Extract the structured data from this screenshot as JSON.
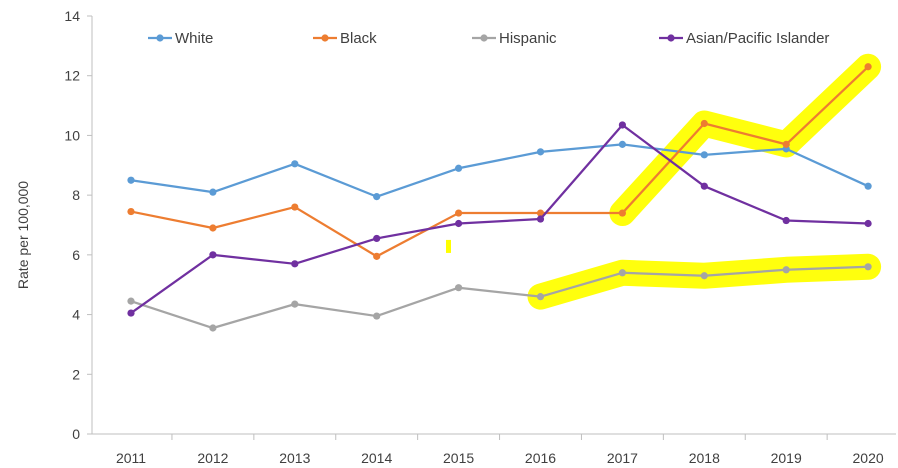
{
  "colors": {
    "White": "#5B9BD5",
    "Black": "#ED7D31",
    "Hispanic": "#A5A5A5",
    "Asian/Pacific Islander": "#7030A0",
    "highlight": "#FFFF00",
    "axis": "#BFBFBF",
    "text": "#404040"
  },
  "chart_data": {
    "type": "line",
    "title": "",
    "xlabel": "",
    "ylabel": "Rate per 100,000",
    "x": [
      "2011",
      "2012",
      "2013",
      "2014",
      "2015",
      "2016",
      "2017",
      "2018",
      "2019",
      "2020"
    ],
    "ylim": [
      0,
      14
    ],
    "yticks": [
      "0",
      "2",
      "4",
      "6",
      "8",
      "10",
      "12",
      "14"
    ],
    "grid": false,
    "legend_position": "top",
    "series": [
      {
        "name": "White",
        "values": [
          8.5,
          8.1,
          9.05,
          7.95,
          8.9,
          9.45,
          9.7,
          9.35,
          9.55,
          8.3
        ]
      },
      {
        "name": "Black",
        "values": [
          7.45,
          6.9,
          7.6,
          5.95,
          7.4,
          7.4,
          7.4,
          10.4,
          9.7,
          12.3
        ]
      },
      {
        "name": "Hispanic",
        "values": [
          4.45,
          3.55,
          4.35,
          3.95,
          4.9,
          4.6,
          5.4,
          5.3,
          5.5,
          5.6
        ]
      },
      {
        "name": "Asian/Pacific Islander",
        "values": [
          4.05,
          6.0,
          5.7,
          6.55,
          7.05,
          7.2,
          10.35,
          8.3,
          7.15,
          7.05
        ]
      }
    ],
    "highlighted_segments": [
      {
        "series": "Black",
        "from": "2017",
        "to": "2020"
      },
      {
        "series": "Hispanic",
        "from": "2016",
        "to": "2020"
      }
    ]
  }
}
